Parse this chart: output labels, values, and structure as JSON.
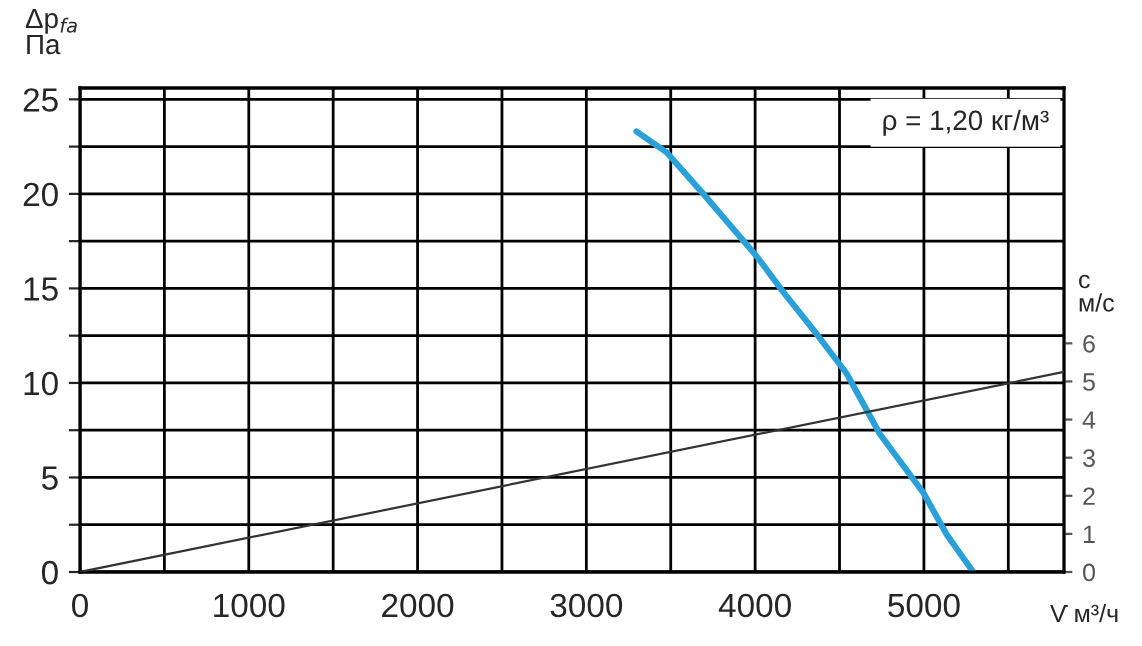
{
  "chart_data": {
    "type": "line",
    "xlabel": "V̇ м³/ч",
    "ylabel": "Δp$_{fa}$\nПа",
    "y2label": "c\nм/с",
    "annotations": [
      "ρ = 1,20 кг/м³"
    ],
    "series": [
      {
        "color": "#2aa0d8",
        "x": [
          3297,
          3475,
          3693,
          4009,
          4167,
          4364,
          4542,
          4739,
          4996,
          5134,
          5292
        ],
        "values": [
          23.3,
          22.2,
          20.0,
          16.7,
          14.8,
          12.6,
          10.5,
          7.3,
          4.2,
          2.0,
          0
        ]
      },
      {
        "color": "#333333",
        "axis": "y2",
        "x": [
          0,
          5830
        ],
        "values": [
          0,
          5.25
        ]
      }
    ],
    "xlim": [
      0,
      5830
    ],
    "xticks": [
      0,
      {
        "value": 500,
        "label": null
      },
      1000,
      {
        "value": 1500,
        "label": null
      },
      2000,
      {
        "value": 2500,
        "label": null
      },
      3000,
      {
        "value": 3500,
        "label": null
      },
      4000,
      {
        "value": 4500,
        "label": null
      },
      5000,
      {
        "value": 5500,
        "label": null
      }
    ],
    "ylim": [
      0,
      25.6
    ],
    "yticks": [
      0,
      {
        "value": 2.5,
        "label": null
      },
      5,
      {
        "value": 7.5,
        "label": null
      },
      10,
      {
        "value": 12.5,
        "label": null
      },
      15,
      {
        "value": 17.5,
        "label": null
      },
      20,
      {
        "value": 22.5,
        "label": null
      },
      25
    ],
    "y2lim": [
      0,
      12.7
    ],
    "y2ticks": [
      0,
      1,
      2,
      3,
      4,
      5,
      6
    ],
    "grid": true,
    "marker": "none",
    "line_style": "solid"
  }
}
